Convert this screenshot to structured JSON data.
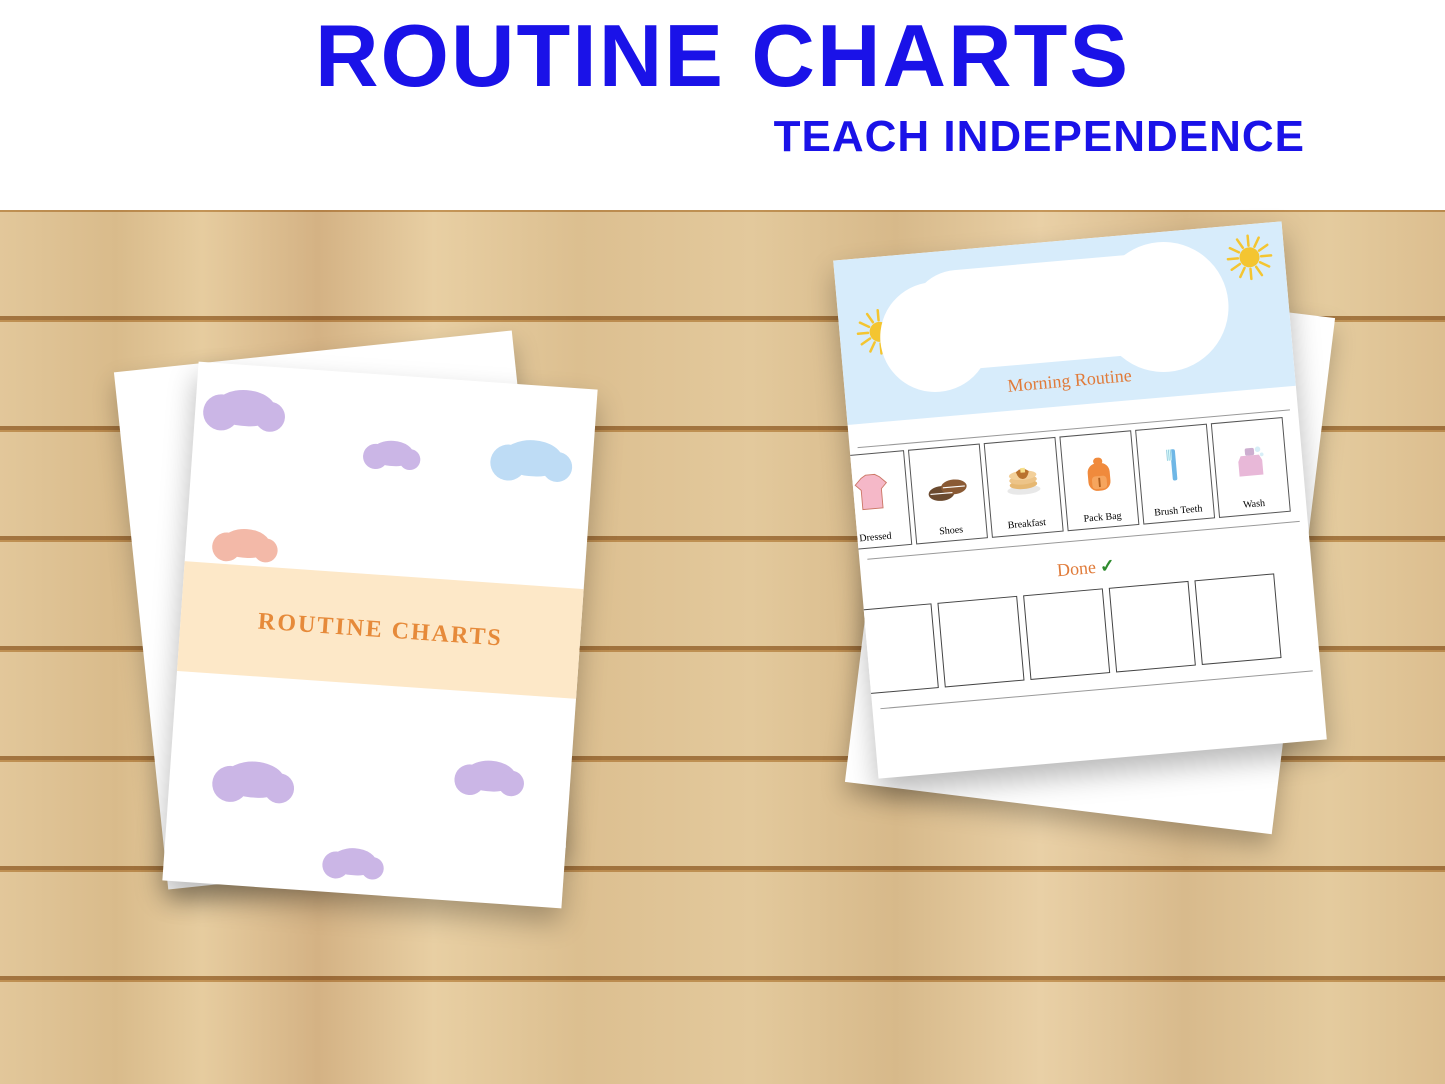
{
  "header": {
    "title": "ROUTINE CHARTS",
    "subtitle": "TEACH INDEPENDENCE",
    "title_color": "#1a12e8",
    "title_fontsize": 88,
    "subtitle_fontsize": 44
  },
  "left_card": {
    "banner_text": "ROUTINE CHARTS",
    "banner_bg": "#fde8c8",
    "banner_text_color": "#e68a3a",
    "banner_fontsize": 24,
    "cloud_colors": {
      "lilac": "#cbb6e6",
      "blue": "#bedcf5",
      "peach": "#f3b9a8"
    }
  },
  "right_card": {
    "sky_color": "#d7ecfb",
    "sun_color": "#f4c531",
    "title": "Morning Routine",
    "title_color": "#e07b3a",
    "done_label": "Done",
    "done_color": "#e07b3a",
    "tasks": [
      {
        "label": "Dressed",
        "icon": "shirt"
      },
      {
        "label": "Shoes",
        "icon": "shoes"
      },
      {
        "label": "Breakfast",
        "icon": "pancakes"
      },
      {
        "label": "Pack Bag",
        "icon": "backpack"
      },
      {
        "label": "Brush Teeth",
        "icon": "toothbrush"
      },
      {
        "label": "Wash",
        "icon": "soap"
      }
    ],
    "done_cells": 5
  }
}
